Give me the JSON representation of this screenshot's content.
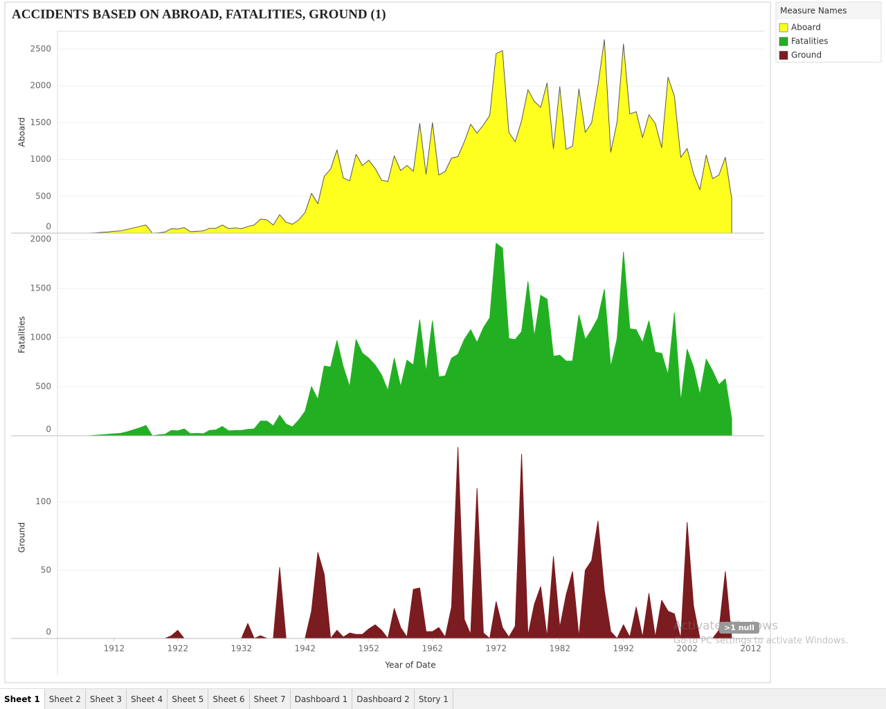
{
  "chart_data": {
    "type": "area",
    "title": "ACCIDENTS BASED ON ABROAD, FATALITIES, GROUND (1)",
    "xlabel": "Year of Date",
    "legend_title": "Measure Names",
    "legend": "top-right",
    "grid": true,
    "x": [
      1908,
      1909,
      1910,
      1911,
      1912,
      1913,
      1914,
      1915,
      1916,
      1917,
      1918,
      1919,
      1920,
      1921,
      1922,
      1923,
      1924,
      1925,
      1926,
      1927,
      1928,
      1929,
      1930,
      1931,
      1932,
      1933,
      1934,
      1935,
      1936,
      1937,
      1938,
      1939,
      1940,
      1941,
      1942,
      1943,
      1944,
      1945,
      1946,
      1947,
      1948,
      1949,
      1950,
      1951,
      1952,
      1953,
      1954,
      1955,
      1956,
      1957,
      1958,
      1959,
      1960,
      1961,
      1962,
      1963,
      1964,
      1965,
      1966,
      1967,
      1968,
      1969,
      1970,
      1971,
      1972,
      1973,
      1974,
      1975,
      1976,
      1977,
      1978,
      1979,
      1980,
      1981,
      1982,
      1983,
      1984,
      1985,
      1986,
      1987,
      1988,
      1989,
      1990,
      1991,
      1992,
      1993,
      1994,
      1995,
      1996,
      1997,
      1998,
      1999,
      2000,
      2001,
      2002,
      2003,
      2004,
      2005,
      2006,
      2007,
      2008,
      2009
    ],
    "xlim": [
      1903.1,
      2014.1
    ],
    "xticks": [
      1912,
      1922,
      1932,
      1942,
      1952,
      1962,
      1972,
      1982,
      1992,
      2002,
      2012
    ],
    "series": [
      {
        "name": "Aboard",
        "color": "#ffff1f",
        "ylim": [
          0,
          2745
        ],
        "yticks": [
          0,
          500,
          1000,
          1500,
          2000,
          2500
        ],
        "values": [
          0,
          3,
          10,
          15,
          25,
          30,
          50,
          70,
          90,
          110,
          0,
          5,
          15,
          60,
          55,
          75,
          20,
          25,
          30,
          65,
          65,
          110,
          60,
          70,
          60,
          90,
          110,
          190,
          180,
          110,
          250,
          150,
          120,
          180,
          280,
          540,
          400,
          770,
          870,
          1130,
          750,
          710,
          1070,
          920,
          990,
          880,
          720,
          700,
          1050,
          850,
          920,
          840,
          1490,
          800,
          1500,
          790,
          840,
          1020,
          1040,
          1240,
          1480,
          1360,
          1470,
          1600,
          2440,
          2480,
          1370,
          1240,
          1530,
          1950,
          1790,
          1710,
          2040,
          1150,
          1990,
          1140,
          1180,
          1960,
          1370,
          1500,
          2010,
          2630,
          1100,
          1510,
          2570,
          1620,
          1650,
          1300,
          1610,
          1490,
          1160,
          2120,
          1860,
          1030,
          1150,
          810,
          590,
          1060,
          740,
          790,
          1030,
          470
        ]
      },
      {
        "name": "Fatalities",
        "color": "#22b022",
        "ylim": [
          0,
          2056
        ],
        "yticks": [
          0,
          500,
          1000,
          1500,
          2000
        ],
        "values": [
          0,
          5,
          10,
          15,
          20,
          25,
          40,
          60,
          80,
          105,
          0,
          10,
          15,
          55,
          50,
          70,
          20,
          25,
          20,
          55,
          60,
          95,
          50,
          55,
          55,
          65,
          70,
          150,
          150,
          100,
          210,
          120,
          90,
          160,
          250,
          500,
          370,
          710,
          700,
          970,
          700,
          500,
          980,
          840,
          790,
          720,
          620,
          460,
          790,
          500,
          770,
          720,
          1180,
          650,
          1170,
          600,
          610,
          790,
          830,
          980,
          1080,
          950,
          1100,
          1200,
          1960,
          1910,
          990,
          980,
          1060,
          1570,
          1010,
          1430,
          1390,
          810,
          820,
          760,
          760,
          1230,
          980,
          1080,
          1200,
          1490,
          700,
          990,
          1870,
          1090,
          1080,
          950,
          1170,
          850,
          840,
          620,
          1250,
          350,
          880,
          700,
          420,
          780,
          660,
          520,
          580,
          170
        ]
      },
      {
        "name": "Ground",
        "color": "#7b1c20",
        "ylim": [
          0,
          148
        ],
        "yticks": [
          0,
          50,
          100
        ],
        "values": [
          0,
          0,
          0,
          0,
          0,
          0,
          0,
          0,
          0,
          0,
          0,
          0,
          0,
          2,
          6,
          0,
          0,
          0,
          0,
          0,
          0,
          0,
          0,
          0,
          0,
          11,
          0,
          2,
          0,
          0,
          52,
          0,
          0,
          0,
          0,
          20,
          63,
          47,
          0,
          6,
          1,
          4,
          3,
          3,
          7,
          10,
          6,
          0,
          22,
          8,
          1,
          36,
          37,
          5,
          5,
          8,
          1,
          23,
          140,
          14,
          3,
          110,
          4,
          0,
          27,
          8,
          1,
          9,
          135,
          2,
          25,
          38,
          1,
          60,
          8,
          32,
          49,
          1,
          50,
          57,
          86,
          35,
          5,
          0,
          10,
          1,
          23,
          1,
          33,
          1,
          28,
          20,
          18,
          0,
          85,
          24,
          0,
          0,
          0,
          6,
          49,
          0
        ]
      }
    ]
  },
  "ui": {
    "tabs": [
      "Sheet 1",
      "Sheet 2",
      "Sheet 3",
      "Sheet 4",
      "Sheet 5",
      "Sheet 6",
      "Sheet 7",
      "Dashboard 1",
      "Dashboard 2",
      "Story 1"
    ],
    "null_indicator": ">1 null",
    "watermark": [
      "Activate Windows",
      "Go to PC settings to activate Windows."
    ]
  }
}
